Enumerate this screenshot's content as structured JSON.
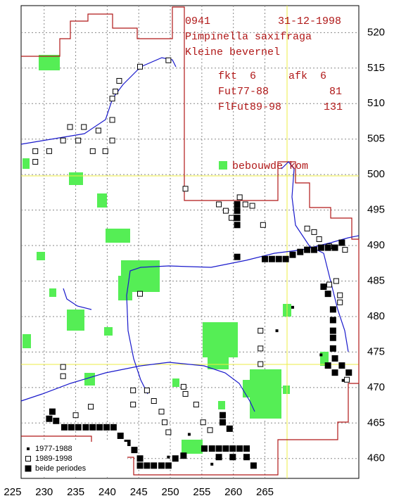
{
  "header": {
    "code": "0941",
    "date": "31-12-1998",
    "species": "Pimpinella saxifraga",
    "dutch_name": "Kleine bevernel"
  },
  "stats": [
    {
      "label": "fkt",
      "value": 6
    },
    {
      "label": "afk",
      "value": 6
    },
    {
      "label": "Fut77-88",
      "value": 81
    },
    {
      "label": "FlFut89-98",
      "value": 131
    }
  ],
  "legend": {
    "built_up": "bebouwde kom"
  },
  "chart_data": {
    "type": "scatter",
    "xlim": [
      223,
      280
    ],
    "ylim": [
      457.2,
      523.8
    ],
    "xticks": [
      225,
      230,
      235,
      240,
      245,
      250,
      255,
      260,
      265
    ],
    "yticks": [
      460,
      465,
      470,
      475,
      480,
      485,
      490,
      495,
      500,
      505,
      510,
      515,
      520
    ],
    "grid": true,
    "series": [
      {
        "name": "1977-1988",
        "marker": "dot",
        "color": "#000000",
        "x": [
          269.4,
          266.9,
          273.9,
          253,
          249.7,
          256.6,
          277.4
        ],
        "y": [
          481.3,
          478,
          474.6,
          463.4,
          460.2,
          459.2,
          471
        ]
      },
      {
        "name": "1989-1998",
        "marker": "open",
        "color": "#000000",
        "x": [
          234.1,
          236.3,
          238.6,
          235.4,
          237.7,
          239.7,
          240.8,
          240.8,
          240.8,
          241.3,
          241.9,
          245.2,
          249.7,
          228.6,
          228.6,
          230.8,
          233,
          252.4,
          261,
          258.8,
          257.7,
          259.7,
          261.9,
          263,
          264.7,
          245.2,
          252.1,
          252.4,
          254.1,
          255.2,
          256.3,
          264.3,
          264.3,
          264.3,
          271.7,
          272.8,
          273.6,
          275.2,
          275.2,
          276.3,
          276.9,
          276.9,
          277.7,
          278,
          233,
          233,
          244.1,
          244.1,
          246.3,
          247.4,
          248.6,
          249.1,
          249.7,
          237.4,
          235
        ],
        "y": [
          506.7,
          506.7,
          506.2,
          504.8,
          503.3,
          503.3,
          504.8,
          507.7,
          510.7,
          511.7,
          513.2,
          515.2,
          516.1,
          503.3,
          501.8,
          503.3,
          504.8,
          498,
          496.8,
          494.9,
          495.8,
          493.9,
          495.8,
          495.6,
          492.9,
          483.2,
          470.1,
          469.1,
          467.6,
          465.1,
          464,
          475.5,
          478,
          473.3,
          492.4,
          491.9,
          490.9,
          489.9,
          484.5,
          485,
          483,
          482,
          489.4,
          471.1,
          472.9,
          471.6,
          469.6,
          467.6,
          469.6,
          468.1,
          466.6,
          465.1,
          463.7,
          467.3,
          466.1
        ]
      },
      {
        "name": "beide periodes",
        "marker": "filled",
        "color": "#000000",
        "x": [
          230.8,
          231.3,
          231.9,
          233.2,
          234.3,
          235.4,
          236.6,
          237.7,
          238.8,
          239.9,
          241,
          242.1,
          243.2,
          244.3,
          245.2,
          245.2,
          246.3,
          247.4,
          248.6,
          249.7,
          250.8,
          252.1,
          255.4,
          256.6,
          257.7,
          258.8,
          259.9,
          261,
          262.1,
          257.7,
          259.9,
          262.1,
          263.2,
          258.3,
          258.3,
          259.4,
          260.6,
          260.6,
          260.6,
          260.6,
          260.6,
          265,
          266.1,
          267.2,
          268.3,
          269.4,
          270.6,
          271.7,
          272.8,
          273.9,
          275,
          276.1,
          277.2,
          274.3,
          275,
          275.8,
          275.8,
          275.8,
          275.8,
          275.8,
          276.1,
          277.2,
          275,
          276.1,
          278.3
        ],
        "y": [
          465.6,
          466.6,
          465.3,
          464.4,
          464.4,
          464.4,
          464.4,
          464.4,
          464.4,
          464.4,
          464.4,
          463.2,
          462.2,
          461.2,
          460,
          459,
          459,
          459,
          459,
          459,
          460,
          460.4,
          461.4,
          461.4,
          461.4,
          461.4,
          461.4,
          461.4,
          461.4,
          460.2,
          460.2,
          460.2,
          459,
          466.1,
          465.1,
          464.2,
          495.8,
          494.9,
          493.9,
          492.9,
          488.4,
          488.1,
          488.1,
          488.1,
          488.1,
          488.7,
          489.1,
          489.4,
          489.4,
          489.7,
          489.7,
          489.7,
          490.4,
          484.2,
          483.2,
          481,
          479.5,
          478,
          477,
          475.5,
          474.1,
          473.1,
          473.1,
          472.1,
          472.1
        ]
      }
    ]
  }
}
